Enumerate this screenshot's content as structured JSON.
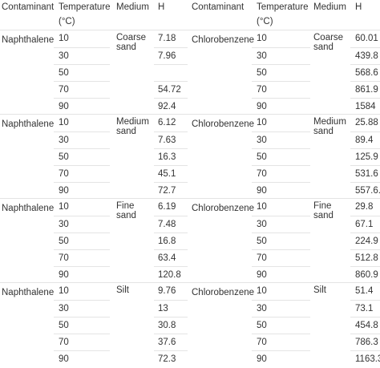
{
  "header": {
    "contaminant": "Contaminant",
    "temperature_1": "Temperature",
    "temperature_2": "(°C)",
    "medium": "Medium",
    "h": "H",
    "contaminant_2": "Contaminant",
    "temperature2_1": "Temperature",
    "temperature2_2": "(°C)",
    "medium_2": "Medium",
    "h_2": "H"
  },
  "groups": [
    {
      "left_contaminant": "Naphthalene",
      "left_medium": [
        "Coarse",
        "sand"
      ],
      "right_contaminant": "Chlorobenzene",
      "right_medium": [
        "Coarse",
        "sand"
      ],
      "rows": [
        {
          "t": "10",
          "h1": "7.18",
          "t2": "10",
          "h2": "60.01"
        },
        {
          "t": "30",
          "h1": "7.96",
          "t2": "30",
          "h2": "439.8"
        },
        {
          "t": "50",
          "h1": "",
          "t2": "50",
          "h2": "568.6"
        },
        {
          "t": "70",
          "h1": "54.72",
          "t2": "70",
          "h2": "861.9"
        },
        {
          "t": "90",
          "h1": "92.4",
          "t2": "90",
          "h2": "1584"
        }
      ]
    },
    {
      "left_contaminant": "Naphthalene",
      "left_medium": [
        "Medium",
        "sand"
      ],
      "right_contaminant": "Chlorobenzene",
      "right_medium": [
        "Medium",
        "sand"
      ],
      "rows": [
        {
          "t": "10",
          "h1": "6.12",
          "t2": "10",
          "h2": "25.88"
        },
        {
          "t": "30",
          "h1": "7.63",
          "t2": "30",
          "h2": "89.4"
        },
        {
          "t": "50",
          "h1": "16.3",
          "t2": "50",
          "h2": "125.9"
        },
        {
          "t": "70",
          "h1": "45.1",
          "t2": "70",
          "h2": "531.6"
        },
        {
          "t": "90",
          "h1": "72.7",
          "t2": "90",
          "h2": "557.6."
        }
      ]
    },
    {
      "left_contaminant": "Naphthalene",
      "left_medium": [
        "Fine",
        "sand"
      ],
      "right_contaminant": "Chlorobenzene",
      "right_medium": [
        "Fine",
        "sand"
      ],
      "rows": [
        {
          "t": "10",
          "h1": "6.19",
          "t2": "10",
          "h2": "29.8"
        },
        {
          "t": "30",
          "h1": "7.48",
          "t2": "30",
          "h2": "67.1"
        },
        {
          "t": "50",
          "h1": "16.8",
          "t2": "50",
          "h2": "224.9"
        },
        {
          "t": "70",
          "h1": "63.4",
          "t2": "70",
          "h2": "512.8"
        },
        {
          "t": "90",
          "h1": "120.8",
          "t2": "90",
          "h2": "860.9"
        }
      ]
    },
    {
      "left_contaminant": "Naphthalene",
      "left_medium": [
        "Silt",
        ""
      ],
      "right_contaminant": "Chlorobenzene",
      "right_medium": [
        "Silt",
        ""
      ],
      "rows": [
        {
          "t": "10",
          "h1": "9.76",
          "t2": "10",
          "h2": "51.4"
        },
        {
          "t": "30",
          "h1": "13",
          "t2": "30",
          "h2": "73.1"
        },
        {
          "t": "50",
          "h1": "30.8",
          "t2": "50",
          "h2": "454.8"
        },
        {
          "t": "70",
          "h1": "37.6",
          "t2": "70",
          "h2": "786.3"
        },
        {
          "t": "90",
          "h1": "72.3",
          "t2": "90",
          "h2": "1163.3"
        }
      ]
    }
  ]
}
